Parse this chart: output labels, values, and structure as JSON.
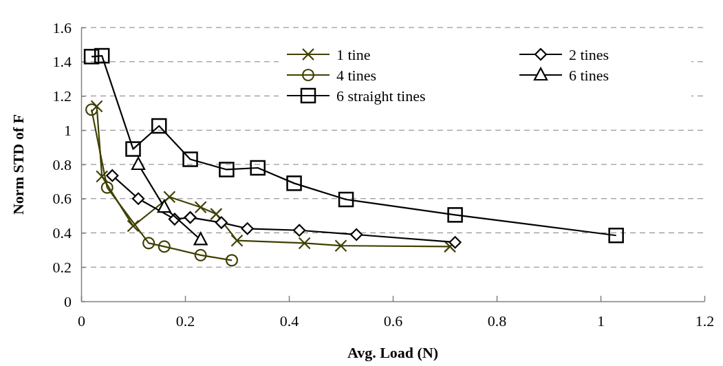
{
  "chart_data": {
    "type": "line",
    "xlabel": "Avg. Load (N)",
    "ylabel": "Norm STD of F",
    "xlim": [
      0,
      1.2
    ],
    "xticks": [
      0,
      0.2,
      0.4,
      0.6,
      0.8,
      1,
      1.2
    ],
    "ylim": [
      0,
      1.6
    ],
    "yticks": [
      0,
      0.2,
      0.4,
      0.6,
      0.8,
      1,
      1.2,
      1.4,
      1.6
    ],
    "grid": "y",
    "legend": "top right",
    "line_style": "solid",
    "series": [
      {
        "name": "1 tine",
        "color": "#3f3f00",
        "marker": "cross",
        "x": [
          0.03,
          0.04,
          0.1,
          0.17,
          0.23,
          0.26,
          0.3,
          0.43,
          0.5,
          0.71
        ],
        "values": [
          1.14,
          0.73,
          0.44,
          0.61,
          0.55,
          0.51,
          0.355,
          0.34,
          0.325,
          0.32
        ]
      },
      {
        "name": "2 tines",
        "color": "#000000",
        "marker": "diamond",
        "x": [
          0.06,
          0.11,
          0.18,
          0.21,
          0.27,
          0.32,
          0.42,
          0.53,
          0.72
        ],
        "values": [
          0.735,
          0.6,
          0.48,
          0.49,
          0.46,
          0.425,
          0.415,
          0.39,
          0.345
        ]
      },
      {
        "name": "4 tines",
        "color": "#3f3f00",
        "marker": "circle",
        "x": [
          0.02,
          0.05,
          0.13,
          0.16,
          0.23,
          0.29
        ],
        "values": [
          1.12,
          0.665,
          0.34,
          0.32,
          0.27,
          0.24
        ]
      },
      {
        "name": "6 tines",
        "color": "#000000",
        "marker": "triangle",
        "x": [
          0.11,
          0.16,
          0.23
        ],
        "values": [
          0.8,
          0.55,
          0.36
        ]
      },
      {
        "name": "6 straight tines",
        "color": "#000000",
        "marker": "square",
        "x": [
          0.02,
          0.04,
          0.1,
          0.15,
          0.21,
          0.28,
          0.34,
          0.41,
          0.51,
          0.72,
          1.03
        ],
        "values": [
          1.43,
          1.435,
          0.89,
          1.025,
          0.83,
          0.77,
          0.78,
          0.69,
          0.595,
          0.505,
          0.385
        ]
      }
    ]
  }
}
